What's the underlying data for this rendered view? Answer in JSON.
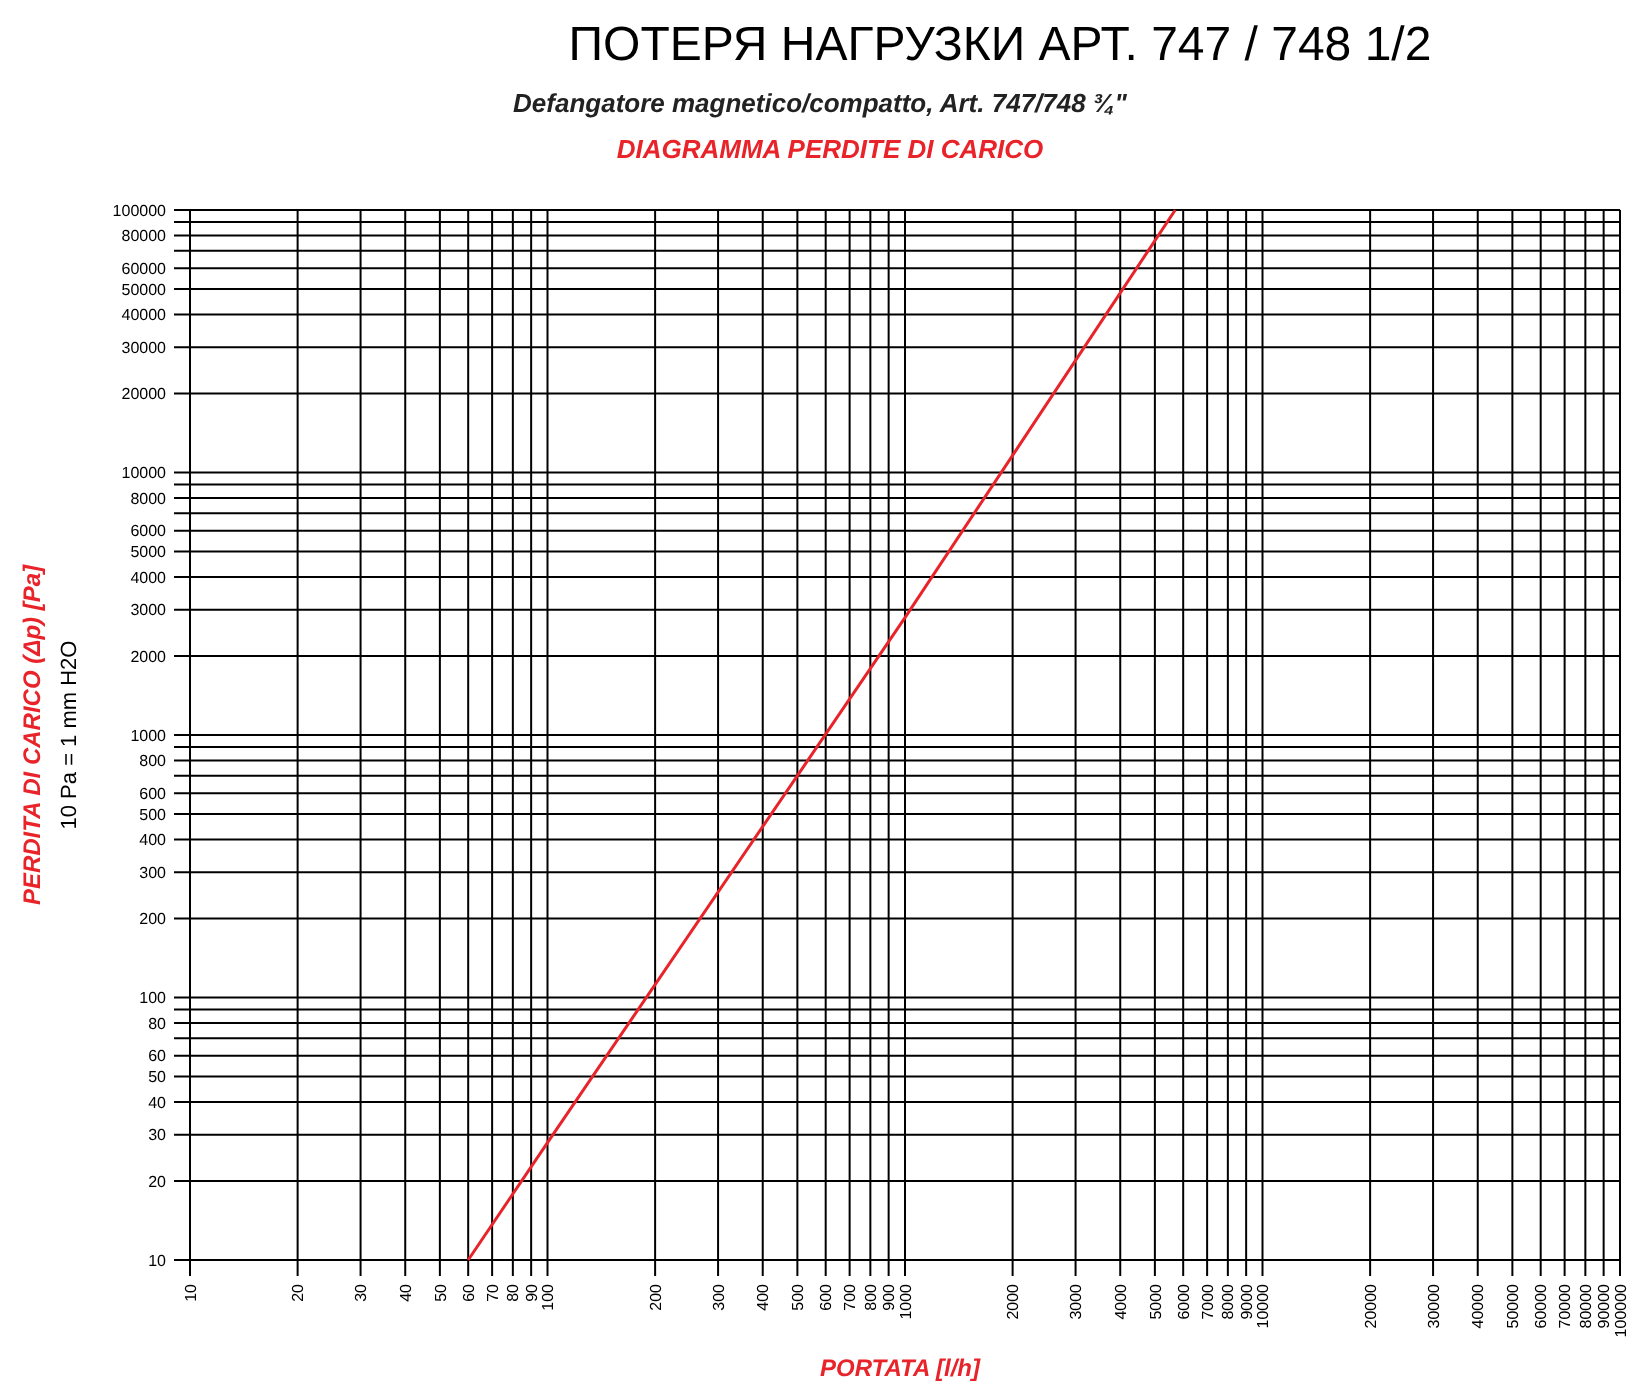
{
  "chart_data": {
    "type": "line",
    "title": "ПОТЕРЯ НАГРУЗКИ АРТ. 747 / 748 1/2",
    "subtitle": "Defangatore magnetico/compatto, Art. 747/748 ¾\"",
    "xlabel": "PORTATA [l/h]",
    "ylabel": "PERDITA DI CARICO (Δp) [Pa]",
    "annotations": [
      "DIAGRAMMA PERDITE DI CARICO",
      "10 Pa = 1 mm H2O"
    ],
    "log": "xy",
    "grid": true,
    "marker": "none",
    "line_style": "solid",
    "xlim": [
      10,
      100000
    ],
    "ylim": [
      10,
      100000
    ],
    "xticks": [
      10,
      20,
      30,
      40,
      50,
      60,
      70,
      80,
      90,
      100,
      200,
      300,
      400,
      500,
      600,
      700,
      800,
      900,
      1000,
      2000,
      3000,
      4000,
      5000,
      6000,
      7000,
      8000,
      9000,
      10000,
      20000,
      30000,
      40000,
      50000,
      60000,
      70000,
      80000,
      90000,
      100000
    ],
    "yticks": [
      10,
      20,
      30,
      40,
      50,
      60,
      {
        "value": 70,
        "label": null
      },
      80,
      {
        "value": 90,
        "label": null
      },
      100,
      200,
      300,
      400,
      500,
      600,
      {
        "value": 700,
        "label": null
      },
      800,
      {
        "value": 900,
        "label": null
      },
      1000,
      2000,
      3000,
      4000,
      5000,
      6000,
      {
        "value": 7000,
        "label": null
      },
      8000,
      {
        "value": 9000,
        "label": null
      },
      10000,
      20000,
      30000,
      40000,
      50000,
      60000,
      {
        "value": 70000,
        "label": null
      },
      80000,
      {
        "value": 90000,
        "label": null
      },
      100000
    ],
    "series": [
      {
        "color": "#e8232a",
        "x": [
          60,
          100,
          1000,
          5700
        ],
        "values": [
          10,
          28,
          2800,
          100000
        ]
      }
    ]
  }
}
